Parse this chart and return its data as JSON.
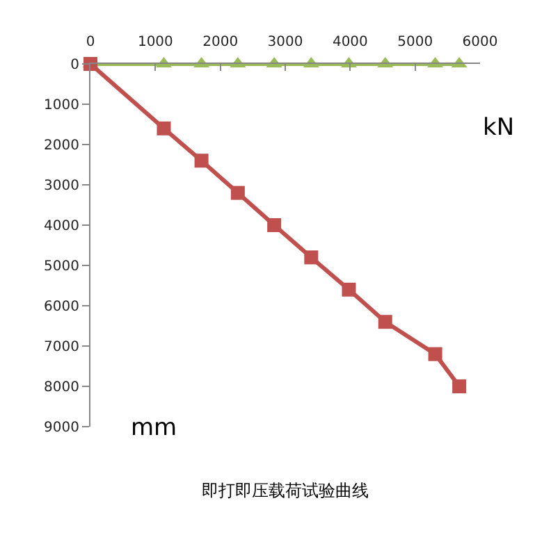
{
  "chart_data": {
    "type": "line",
    "title": "即打即压载荷试验曲线",
    "annotations": [
      "kN",
      "mm"
    ],
    "xlim": [
      0,
      6000
    ],
    "xticks": [
      0,
      1000,
      2000,
      3000,
      4000,
      5000,
      6000
    ],
    "ylim": [
      9000,
      0
    ],
    "yticks": [
      0,
      1000,
      2000,
      3000,
      4000,
      5000,
      6000,
      7000,
      8000,
      9000
    ],
    "series": [
      {
        "color": "#c0504d",
        "marker": "square",
        "x": [
          0,
          1130,
          1710,
          2270,
          2830,
          3400,
          3980,
          4540,
          5310,
          5680
        ],
        "values": [
          0,
          1600,
          2400,
          3200,
          4000,
          4800,
          5600,
          6400,
          7200,
          8000
        ]
      },
      {
        "color": "#9bbb59",
        "marker": "triangle",
        "x": [
          0,
          1130,
          1710,
          2270,
          2830,
          3400,
          3980,
          4540,
          5310,
          5680
        ],
        "values": [
          0,
          0,
          0,
          0,
          0,
          0,
          0,
          0,
          0,
          0
        ]
      }
    ]
  }
}
